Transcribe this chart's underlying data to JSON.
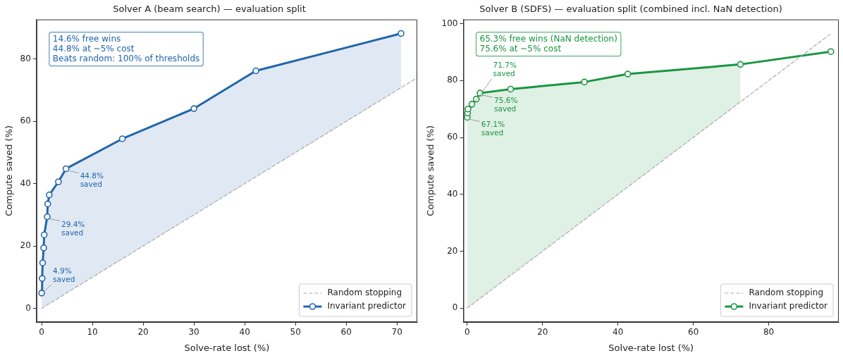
{
  "chart_data": [
    {
      "type": "line",
      "title": "Solver A (beam search) — evaluation split",
      "xlabel": "Solve-rate lost (%)",
      "ylabel": "Compute saved (%)",
      "xlim": [
        -1,
        74
      ],
      "ylim": [
        -4.4,
        92.7
      ],
      "xticks": [
        0,
        10,
        20,
        30,
        40,
        50,
        60,
        70
      ],
      "yticks": [
        0,
        20,
        40,
        60,
        80
      ],
      "grid": false,
      "legend": "bottom right",
      "series": [
        {
          "name": "Random stopping",
          "color": "#aaaaaa",
          "line_style": "dashed",
          "marker": "none",
          "x": [
            0,
            74
          ],
          "values": [
            0,
            74
          ]
        },
        {
          "name": "Invariant predictor",
          "color": "#2166ac",
          "line_style": "solid",
          "marker": "circle",
          "x": [
            0,
            0.1,
            0.2,
            0.4,
            0.5,
            1.1,
            1.2,
            1.5,
            3.3,
            4.8,
            15.9,
            30.0,
            42.2,
            70.8
          ],
          "values": [
            4.9,
            9.6,
            14.6,
            19.4,
            23.6,
            29.4,
            33.5,
            36.4,
            40.6,
            44.8,
            54.4,
            64.1,
            76.2,
            88.2
          ],
          "lower": [
            0,
            0.1,
            0.2,
            0.4,
            0.5,
            1.1,
            1.2,
            1.5,
            3.3,
            4.8,
            15.9,
            30.0,
            42.2,
            70.8
          ],
          "upper": [
            4.9,
            9.6,
            14.6,
            19.4,
            23.6,
            29.4,
            33.5,
            36.4,
            40.6,
            44.8,
            54.4,
            64.1,
            76.2,
            88.2
          ]
        }
      ],
      "annotations": [
        "14.6% free wins\n44.8% at ~5% cost\nBeats random: 100% of thresholds",
        {
          "text": "4.9%\nsaved",
          "x": 0,
          "y": 4.9
        },
        {
          "text": "29.4%\nsaved",
          "x": 1.1,
          "y": 29.4
        },
        {
          "text": "44.8%\nsaved",
          "x": 4.8,
          "y": 44.8
        }
      ]
    },
    {
      "type": "line",
      "title": "Solver B (SDFS) — evaluation split (combined incl. NaN detection)",
      "xlabel": "Solve-rate lost (%)",
      "ylabel": "Compute saved (%)",
      "xlim": [
        -1,
        98.6
      ],
      "ylim": [
        -4.9,
        101.5
      ],
      "xticks": [
        0,
        20,
        40,
        60,
        80
      ],
      "yticks": [
        0,
        20,
        40,
        60,
        80,
        100
      ],
      "grid": false,
      "legend": "bottom right",
      "series": [
        {
          "name": "Random stopping",
          "color": "#aaaaaa",
          "line_style": "dashed",
          "marker": "none",
          "x": [
            0,
            96.5
          ],
          "values": [
            0,
            96.5
          ]
        },
        {
          "name": "Invariant predictor",
          "color": "#1a9641",
          "line_style": "solid",
          "marker": "circle",
          "x": [
            0,
            0.1,
            0.2,
            1.25,
            2.4,
            3.4,
            11.5,
            31.1,
            42.6,
            72.5,
            96.5
          ],
          "values": [
            67.1,
            68.6,
            70.0,
            71.7,
            73.5,
            75.6,
            77.0,
            79.5,
            82.3,
            85.7,
            90.2
          ],
          "lower": [
            0,
            0.1,
            0.2,
            1.25,
            2.4,
            3.4,
            11.5,
            31.1,
            42.6,
            72.5,
            null
          ],
          "upper": [
            67.1,
            68.6,
            70.0,
            71.7,
            73.5,
            75.6,
            77.0,
            79.5,
            82.3,
            85.7,
            null
          ]
        }
      ],
      "annotations": [
        "65.3% free wins (NaN detection)\n75.6% at ~5% cost",
        {
          "text": "67.1%\nsaved",
          "x": 0,
          "y": 67.1
        },
        {
          "text": "71.7%\nsaved",
          "x": 1.25,
          "y": 71.7
        },
        {
          "text": "75.6%\nsaved",
          "x": 3.4,
          "y": 75.6
        }
      ]
    }
  ]
}
